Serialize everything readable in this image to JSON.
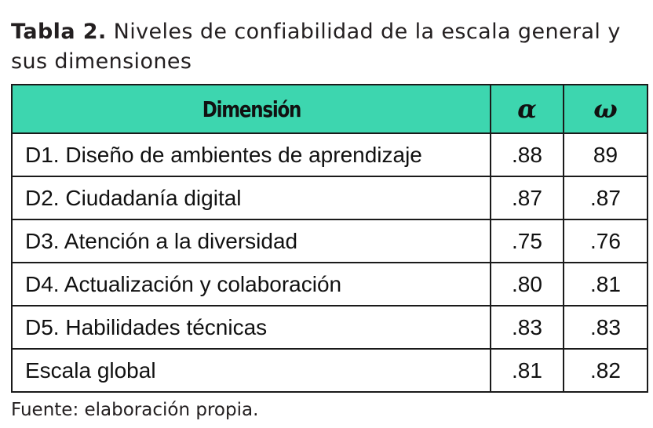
{
  "caption": {
    "label": "Tabla 2.",
    "text": "Niveles de confiabilidad de la escala general y sus dimensiones"
  },
  "table": {
    "headers": {
      "dimension": "Dimensión",
      "alpha": "α",
      "omega": "ω"
    },
    "rows": [
      {
        "dimension": "D1. Diseño de ambientes de aprendizaje",
        "alpha": ".88",
        "omega": "89"
      },
      {
        "dimension": "D2. Ciudadanía digital",
        "alpha": ".87",
        "omega": ".87"
      },
      {
        "dimension": "D3. Atención a la diversidad",
        "alpha": ".75",
        "omega": ".76"
      },
      {
        "dimension": "D4. Actualización y colaboración",
        "alpha": ".80",
        "omega": ".81"
      },
      {
        "dimension": "D5. Habilidades técnicas",
        "alpha": ".83",
        "omega": ".83"
      },
      {
        "dimension": "Escala global",
        "alpha": ".81",
        "omega": ".82"
      }
    ]
  },
  "source": "Fuente: elaboración propia.",
  "colors": {
    "header_background": "#3dd6af",
    "border": "#1a1a1a",
    "text": "#231f20"
  }
}
